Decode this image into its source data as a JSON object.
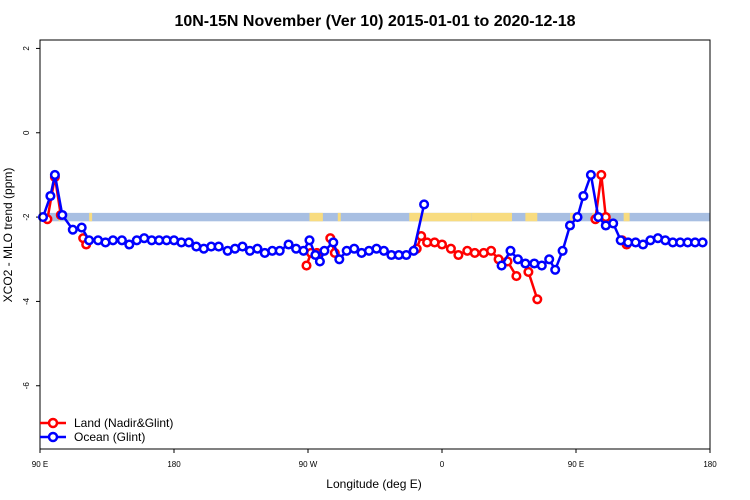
{
  "chart_data": {
    "type": "line",
    "title": "10N-15N November (Ver 10)   2015-01-01 to 2020-12-18",
    "xlabel": "Longitude (deg E)",
    "ylabel": "XCO2 - MLO trend (ppm)",
    "xlim": [
      90,
      540
    ],
    "ylim": [
      -7.5,
      2.2
    ],
    "x_ticks": [
      {
        "value": 90,
        "label": "90 E"
      },
      {
        "value": 180,
        "label": "180"
      },
      {
        "value": 270,
        "label": "90 W"
      },
      {
        "value": 360,
        "label": "0"
      },
      {
        "value": 450,
        "label": "90 E"
      },
      {
        "value": 540,
        "label": "180"
      }
    ],
    "y_ticks": [
      {
        "value": 2,
        "label": "2"
      },
      {
        "value": 0,
        "label": "0"
      },
      {
        "value": -2,
        "label": "-2"
      },
      {
        "value": -4,
        "label": "-4"
      },
      {
        "value": -6,
        "label": "-6"
      }
    ],
    "grid": false,
    "band": {
      "y_top": -1.9,
      "y_bottom": -2.1,
      "ocean_color": "#a8bfe2",
      "land_color": "#f8dc80"
    },
    "land_spans": [
      [
        102.5,
        103.5
      ],
      [
        123,
        125
      ],
      [
        271,
        280
      ],
      [
        290,
        292
      ],
      [
        338,
        380
      ],
      [
        380,
        407
      ],
      [
        416,
        424
      ],
      [
        446,
        450
      ],
      [
        461,
        466
      ],
      [
        482,
        486
      ]
    ],
    "legend": {
      "position": "bottom-left",
      "entries": [
        {
          "name": "Land (Nadir&Glint)",
          "color": "#ff0000"
        },
        {
          "name": "Ocean (Glint)",
          "color": "#0000ff"
        }
      ]
    },
    "series": [
      {
        "name": "Land (Nadir&Glint)",
        "color": "#ff0000",
        "segments": [
          [
            [
              95,
              -2.05
            ],
            [
              100,
              -1.05
            ],
            [
              104,
              -1.95
            ]
          ],
          [
            [
              119,
              -2.5
            ],
            [
              121,
              -2.65
            ]
          ],
          [
            [
              269,
              -3.15
            ],
            [
              272,
              -2.85
            ],
            [
              276,
              -2.85
            ]
          ],
          [
            [
              285,
              -2.5
            ],
            [
              288,
              -2.85
            ]
          ],
          [
            [
              343,
              -2.75
            ],
            [
              346,
              -2.45
            ],
            [
              350,
              -2.6
            ],
            [
              355,
              -2.6
            ],
            [
              360,
              -2.65
            ],
            [
              366,
              -2.75
            ],
            [
              371,
              -2.9
            ],
            [
              377,
              -2.8
            ],
            [
              382,
              -2.85
            ],
            [
              388,
              -2.85
            ],
            [
              393,
              -2.8
            ],
            [
              398,
              -3.0
            ],
            [
              404,
              -3.05
            ],
            [
              410,
              -3.4
            ]
          ],
          [
            [
              418,
              -3.3
            ],
            [
              424,
              -3.95
            ]
          ],
          [
            [
              463,
              -2.05
            ],
            [
              467,
              -1.0
            ],
            [
              470,
              -2.0
            ]
          ],
          [
            [
              481,
              -2.55
            ],
            [
              484,
              -2.65
            ]
          ]
        ]
      },
      {
        "name": "Ocean (Glint)",
        "color": "#0000ff",
        "segments": [
          [
            [
              92,
              -2.0
            ],
            [
              97,
              -1.5
            ],
            [
              100,
              -1.0
            ],
            [
              105,
              -1.95
            ],
            [
              112,
              -2.3
            ],
            [
              118,
              -2.25
            ],
            [
              123,
              -2.55
            ],
            [
              129,
              -2.55
            ],
            [
              134,
              -2.6
            ],
            [
              139,
              -2.55
            ],
            [
              145,
              -2.55
            ],
            [
              150,
              -2.65
            ],
            [
              155,
              -2.55
            ],
            [
              160,
              -2.5
            ],
            [
              165,
              -2.55
            ],
            [
              170,
              -2.55
            ],
            [
              175,
              -2.55
            ],
            [
              180,
              -2.55
            ],
            [
              185,
              -2.6
            ],
            [
              190,
              -2.6
            ],
            [
              195,
              -2.7
            ],
            [
              200,
              -2.75
            ],
            [
              205,
              -2.7
            ],
            [
              210,
              -2.7
            ],
            [
              216,
              -2.8
            ],
            [
              221,
              -2.75
            ],
            [
              226,
              -2.7
            ],
            [
              231,
              -2.8
            ],
            [
              236,
              -2.75
            ],
            [
              241,
              -2.85
            ],
            [
              246,
              -2.8
            ],
            [
              251,
              -2.8
            ],
            [
              257,
              -2.65
            ],
            [
              262,
              -2.75
            ],
            [
              267,
              -2.8
            ],
            [
              271,
              -2.55
            ],
            [
              275,
              -2.9
            ],
            [
              278,
              -3.05
            ],
            [
              281,
              -2.8
            ],
            [
              287,
              -2.6
            ],
            [
              291,
              -3.0
            ],
            [
              296,
              -2.8
            ],
            [
              301,
              -2.75
            ],
            [
              306,
              -2.85
            ],
            [
              311,
              -2.8
            ],
            [
              316,
              -2.75
            ],
            [
              321,
              -2.8
            ],
            [
              326,
              -2.9
            ],
            [
              331,
              -2.9
            ],
            [
              336,
              -2.9
            ],
            [
              341,
              -2.8
            ],
            [
              348,
              -1.7
            ]
          ],
          [
            [
              400,
              -3.15
            ],
            [
              406,
              -2.8
            ],
            [
              411,
              -3.0
            ],
            [
              416,
              -3.1
            ],
            [
              422,
              -3.1
            ],
            [
              427,
              -3.15
            ],
            [
              432,
              -3.0
            ],
            [
              436,
              -3.25
            ],
            [
              441,
              -2.8
            ],
            [
              446,
              -2.2
            ],
            [
              451,
              -2.0
            ],
            [
              455,
              -1.5
            ],
            [
              460,
              -1.0
            ],
            [
              465,
              -2.0
            ],
            [
              470,
              -2.2
            ],
            [
              475,
              -2.15
            ],
            [
              480,
              -2.55
            ],
            [
              485,
              -2.6
            ],
            [
              490,
              -2.6
            ],
            [
              495,
              -2.65
            ],
            [
              500,
              -2.55
            ],
            [
              505,
              -2.5
            ],
            [
              510,
              -2.55
            ],
            [
              515,
              -2.6
            ],
            [
              520,
              -2.6
            ],
            [
              525,
              -2.6
            ],
            [
              530,
              -2.6
            ],
            [
              535,
              -2.6
            ]
          ]
        ]
      }
    ]
  }
}
